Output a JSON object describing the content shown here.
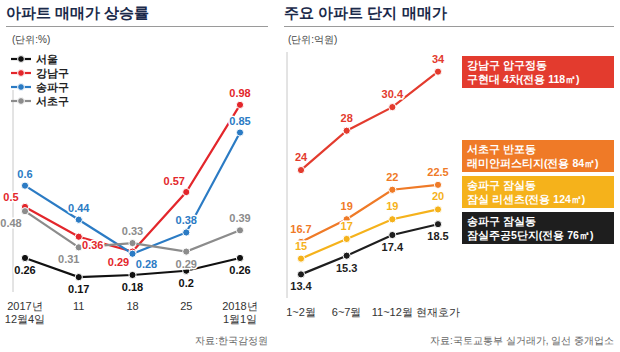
{
  "chart_data": [
    {
      "type": "line",
      "title": "아파트 매매가 상승률",
      "subtitle": "(단위:%)",
      "source": "자료:한국감정원",
      "categories": [
        "2017년\n12월4일",
        "11",
        "18",
        "25",
        "2018년\n1월1일"
      ],
      "series": [
        {
          "name": "서울",
          "color": "#111111",
          "values": [
            0.26,
            0.17,
            0.18,
            0.2,
            0.26
          ]
        },
        {
          "name": "강남구",
          "color": "#e3262b",
          "values": [
            0.5,
            0.36,
            0.29,
            0.57,
            0.98
          ]
        },
        {
          "name": "송파구",
          "color": "#2b7bc4",
          "values": [
            0.6,
            0.44,
            0.28,
            0.38,
            0.85
          ]
        },
        {
          "name": "서초구",
          "color": "#8c8c8c",
          "values": [
            0.48,
            0.31,
            0.33,
            0.29,
            0.39
          ]
        }
      ],
      "ylim": [
        0.1,
        1.05
      ],
      "tick_labels": "x",
      "legend": "top-left",
      "data_labels": true,
      "grid": false,
      "marker": "circle"
    },
    {
      "type": "line",
      "title": "주요 아파트 단지 매매가",
      "subtitle": "(단위:억원)",
      "source": "자료:국토교통부 실거래가, 일선 중개업소",
      "categories": [
        "1~2월",
        "6~7월",
        "11~12월",
        "현재호가"
      ],
      "series": [
        {
          "name": "강남구 압구정동\n구현대 4차(전용 118㎡)",
          "color": "#e33b2e",
          "values": [
            24,
            28,
            30.4,
            34
          ]
        },
        {
          "name": "서초구 반포동\n래미안퍼스티지(전용 84㎡)",
          "color": "#ef7a27",
          "values": [
            16.7,
            19,
            22,
            22.5
          ]
        },
        {
          "name": "송파구 잠실동\n잠실 리센츠(전용 124㎡)",
          "color": "#f5b21b",
          "values": [
            15,
            17,
            19,
            20
          ]
        },
        {
          "name": "송파구 잠실동\n잠실주공5단지(전용 76㎡)",
          "color": "#1e1e1e",
          "values": [
            13.4,
            15.3,
            17.4,
            18.5
          ]
        }
      ],
      "ylim": [
        11,
        36
      ],
      "tick_labels": "x",
      "legend": "right",
      "data_labels": true,
      "grid": false,
      "marker": "circle"
    }
  ]
}
